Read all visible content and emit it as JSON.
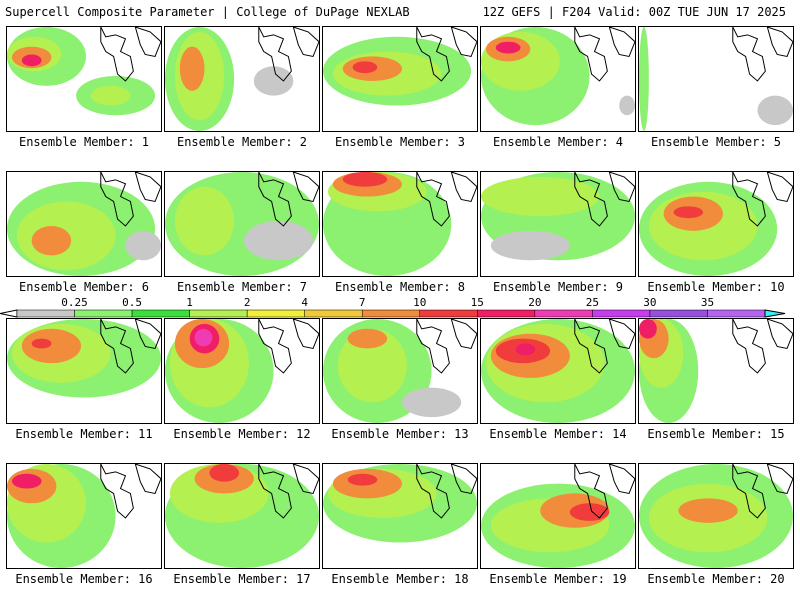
{
  "header": {
    "title": "Supercell Composite Parameter | College of DuPage NEXLAB",
    "run_info": "12Z GEFS | F204 Valid: 00Z TUE JUN 17 2025"
  },
  "colorbar": {
    "levels": [
      "0.25",
      "0.5",
      "1",
      "2",
      "4",
      "7",
      "10",
      "15",
      "20",
      "25",
      "30",
      "35"
    ],
    "colors": [
      "#c8c8c8",
      "#8cf070",
      "#3ce03c",
      "#b4f050",
      "#f0f03c",
      "#f0c83c",
      "#f08c3c",
      "#f03c3c",
      "#f01e64",
      "#f03cb4",
      "#c83cf0",
      "#9650dc",
      "#b464f0",
      "#3cf0f0"
    ]
  },
  "members": [
    {
      "label": "Ensemble Member: 1"
    },
    {
      "label": "Ensemble Member: 2"
    },
    {
      "label": "Ensemble Member: 3"
    },
    {
      "label": "Ensemble Member: 4"
    },
    {
      "label": "Ensemble Member: 5"
    },
    {
      "label": "Ensemble Member: 6"
    },
    {
      "label": "Ensemble Member: 7"
    },
    {
      "label": "Ensemble Member: 8"
    },
    {
      "label": "Ensemble Member: 9"
    },
    {
      "label": "Ensemble Member: 10"
    },
    {
      "label": "Ensemble Member: 11"
    },
    {
      "label": "Ensemble Member: 12"
    },
    {
      "label": "Ensemble Member: 13"
    },
    {
      "label": "Ensemble Member: 14"
    },
    {
      "label": "Ensemble Member: 15"
    },
    {
      "label": "Ensemble Member: 16"
    },
    {
      "label": "Ensemble Member: 17"
    },
    {
      "label": "Ensemble Member: 18"
    },
    {
      "label": "Ensemble Member: 19"
    },
    {
      "label": "Ensemble Member: 20"
    }
  ]
}
